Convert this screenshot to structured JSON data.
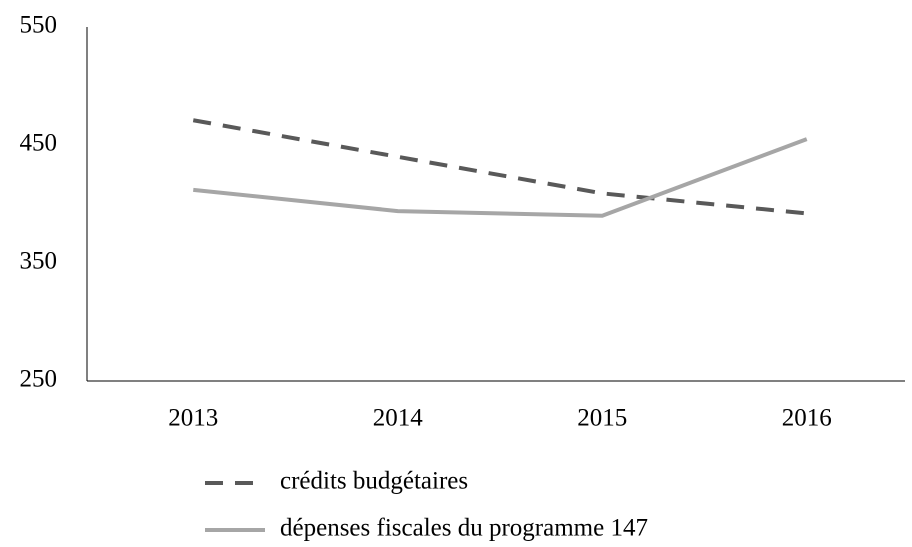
{
  "chart_data": {
    "type": "line",
    "categories": [
      "2013",
      "2014",
      "2015",
      "2016"
    ],
    "series": [
      {
        "name": "crédits budgétaires",
        "color": "#595959",
        "dash": true,
        "values": [
          471,
          440,
          409,
          392
        ]
      },
      {
        "name": "dépenses fiscales du programme 147",
        "color": "#a6a6a6",
        "dash": false,
        "values": [
          412,
          394,
          390,
          455
        ]
      }
    ],
    "ylim": [
      250,
      550
    ],
    "yticks": [
      250,
      350,
      450,
      550
    ],
    "grid": false
  }
}
